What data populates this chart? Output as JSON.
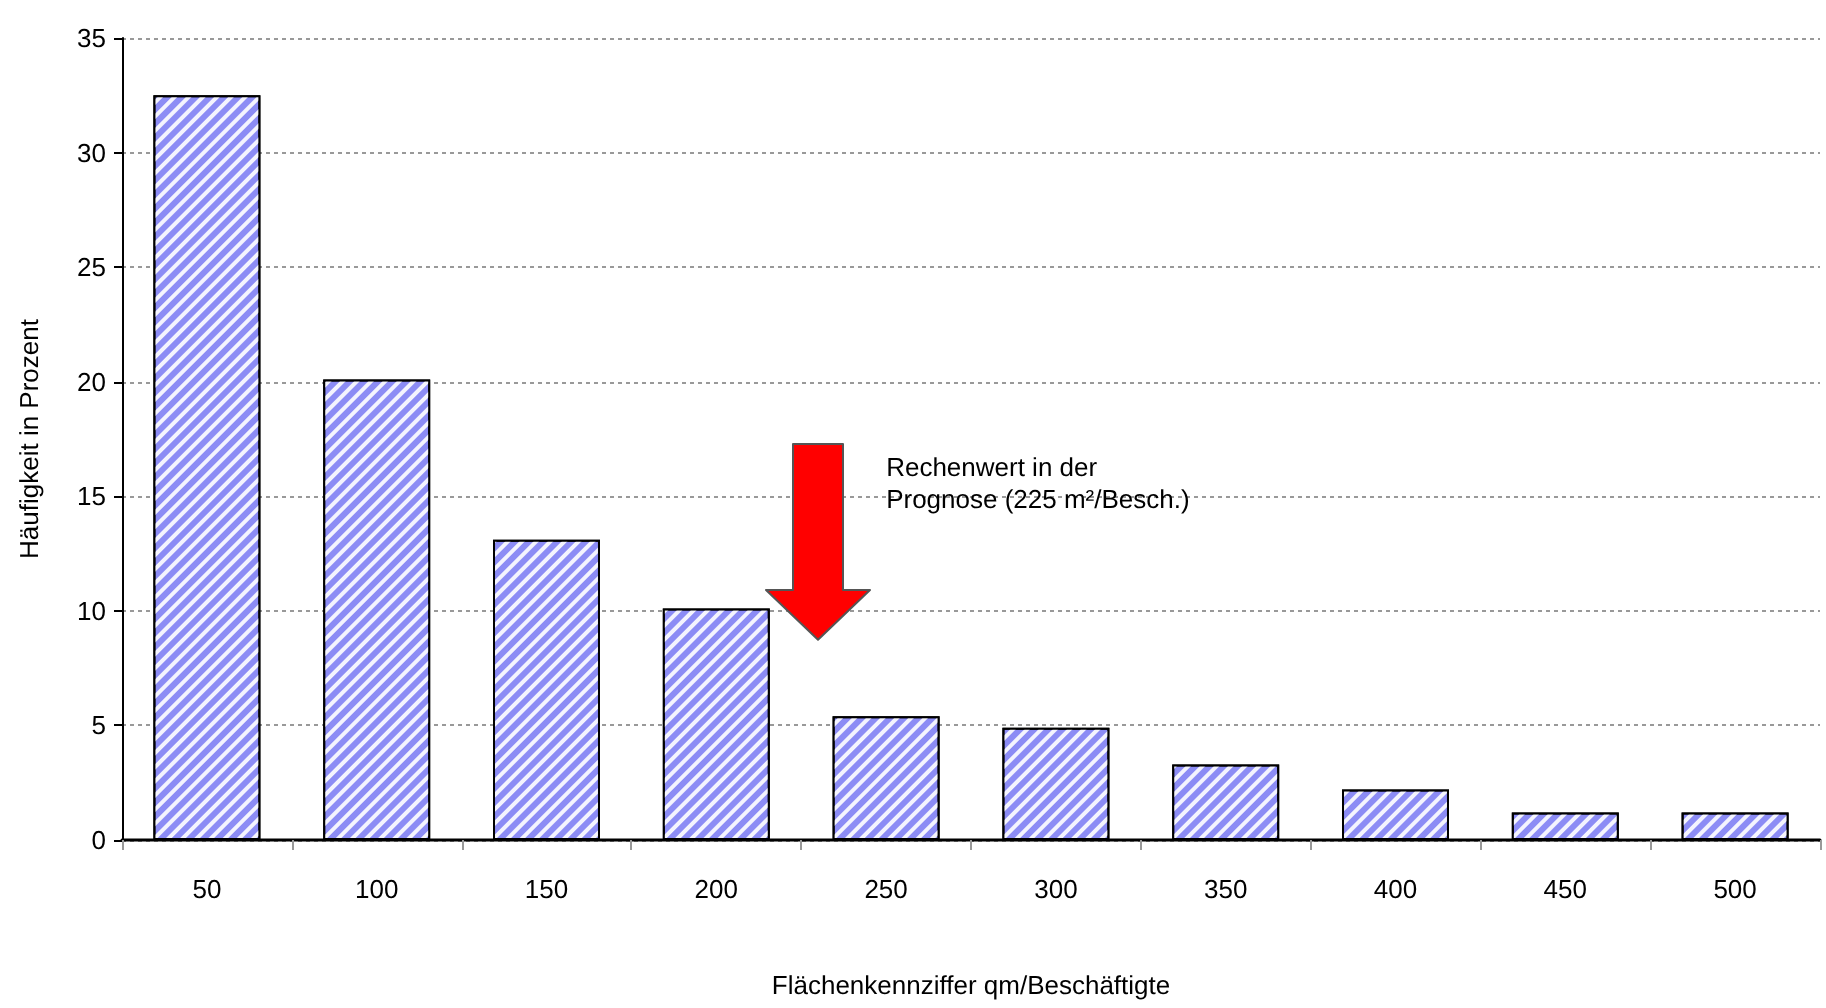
{
  "chart_data": {
    "type": "bar",
    "xlabel": "Flächenkennziffer qm/Beschäftigte",
    "ylabel": "Häufigkeit in Prozent",
    "categories": [
      "50",
      "100",
      "150",
      "200",
      "250",
      "300",
      "350",
      "400",
      "450",
      "500"
    ],
    "values": [
      32.5,
      20.1,
      13.1,
      10.1,
      5.4,
      4.9,
      3.3,
      2.2,
      1.2,
      1.2
    ],
    "color": "#8c8cf5",
    "ylim": [
      0,
      35
    ],
    "yticks": [
      0,
      5,
      10,
      15,
      20,
      25,
      30,
      35
    ],
    "grid": "y",
    "annotations": [
      "Rechenwert in der Prognose (225 m²/Besch.)"
    ]
  }
}
